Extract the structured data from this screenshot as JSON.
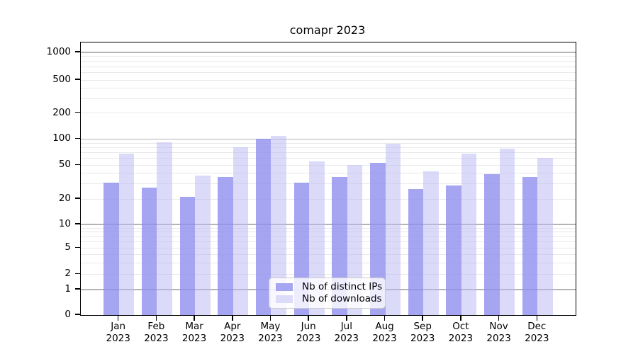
{
  "title": "comapr 2023",
  "legend": {
    "items": [
      {
        "label": "Nb of distinct IPs",
        "swatch_color": "#a5a5f2"
      },
      {
        "label": "Nb of downloads",
        "swatch_color": "#dcdcf9"
      }
    ]
  },
  "colors": {
    "ip_bar": "rgba(143,143,239,0.80)",
    "dl_bar": "rgba(186,186,243,0.52)",
    "major_grid": "#b4b4b4",
    "minor_grid": "#e9e9e9",
    "spine": "#000000"
  },
  "x_axis": {
    "months": [
      "Jan",
      "Feb",
      "Mar",
      "Apr",
      "May",
      "Jun",
      "Jul",
      "Aug",
      "Sep",
      "Oct",
      "Nov",
      "Dec"
    ],
    "year": "2023"
  },
  "y_axis": {
    "tick_values": [
      0,
      1,
      2,
      5,
      10,
      20,
      50,
      100,
      200,
      500,
      1000
    ]
  },
  "chart_data": {
    "type": "bar",
    "title": "comapr 2023",
    "categories": [
      "Jan 2023",
      "Feb 2023",
      "Mar 2023",
      "Apr 2023",
      "May 2023",
      "Jun 2023",
      "Jul 2023",
      "Aug 2023",
      "Sep 2023",
      "Oct 2023",
      "Nov 2023",
      "Dec 2023"
    ],
    "series": [
      {
        "name": "Nb of distinct IPs",
        "color": "#a5a5f2",
        "values": [
          31,
          27,
          21,
          36,
          100,
          31,
          36,
          53,
          26,
          29,
          39,
          36
        ]
      },
      {
        "name": "Nb of downloads",
        "color": "#dcdcf9",
        "values": [
          68,
          92,
          38,
          81,
          108,
          55,
          50,
          88,
          42,
          68,
          78,
          61
        ]
      }
    ],
    "xlabel": "",
    "ylabel": "",
    "yscale": "symlog-like, labeled ticks 0,1,2,5,10,20,50,100,200,500,1000 with log minor gridlines",
    "ylim": [
      0,
      1300
    ],
    "grid": "horizontal only",
    "legend_position": "lower center inside plot"
  }
}
